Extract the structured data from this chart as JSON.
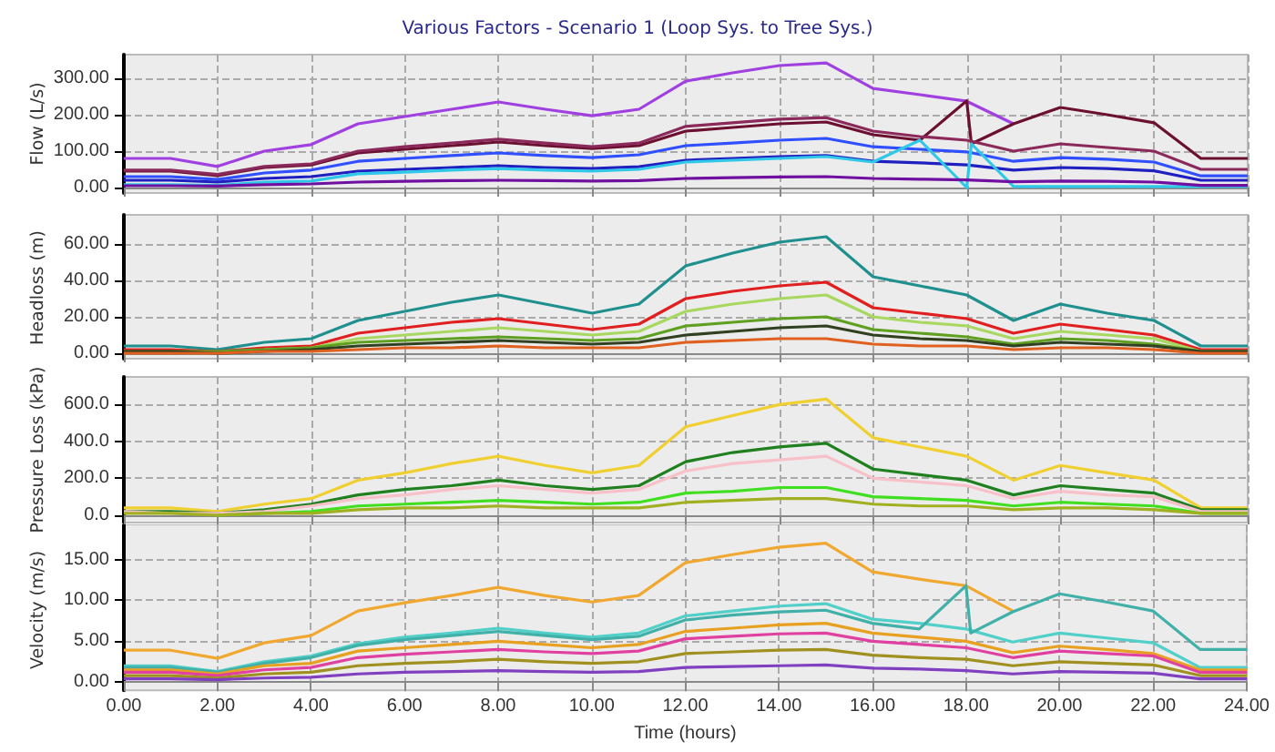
{
  "chart_data": [
    {
      "type": "line",
      "title": "Various Factors - Scenario 1 (Loop Sys. to Tree Sys.)",
      "ylabel": "Flow (L/s)",
      "x": [
        0,
        1,
        2,
        3,
        4,
        5,
        6,
        7,
        8,
        9,
        10,
        11,
        12,
        13,
        14,
        15,
        16,
        17,
        18,
        19,
        20,
        21,
        22,
        23,
        24
      ],
      "xlim": [
        0,
        24
      ],
      "xticks": [
        0,
        2,
        4,
        6,
        8,
        10,
        12,
        14,
        16,
        18,
        20,
        22,
        24
      ],
      "tick_labels": "y",
      "ylim": [
        -15,
        365
      ],
      "yticks": [
        {
          "value": 0,
          "label": "0.00"
        },
        {
          "value": 100,
          "label": "100.00"
        },
        {
          "value": 200,
          "label": "200.00"
        },
        {
          "value": 300,
          "label": "300.00"
        }
      ],
      "grid": true,
      "series": [
        {
          "color": "#a040e0",
          "values": [
            80,
            80,
            58,
            100,
            118,
            175,
            195,
            215,
            235,
            215,
            197,
            215,
            292,
            315,
            335,
            342,
            272,
            255,
            237,
            175,
            null,
            null,
            null,
            null,
            null
          ]
        },
        {
          "color": "#6b1030",
          "x": [
            0,
            1,
            2,
            3,
            4,
            5,
            6,
            7,
            8,
            9,
            10,
            11,
            12,
            13,
            14,
            15,
            16,
            17,
            18,
            18.1,
            19,
            20,
            21,
            22,
            23,
            24
          ],
          "values": [
            45,
            45,
            33,
            55,
            62,
            95,
            105,
            115,
            125,
            115,
            107,
            115,
            155,
            165,
            175,
            180,
            145,
            130,
            238,
            120,
            175,
            220,
            200,
            178,
            80,
            80
          ]
        },
        {
          "color": "#8b2a5a",
          "values": [
            48,
            48,
            36,
            58,
            65,
            100,
            112,
            122,
            133,
            122,
            112,
            122,
            168,
            178,
            188,
            192,
            155,
            140,
            130,
            100,
            120,
            110,
            100,
            50,
            50
          ]
        },
        {
          "color": "#3050ff",
          "values": [
            30,
            30,
            22,
            40,
            48,
            72,
            80,
            88,
            95,
            88,
            82,
            90,
            115,
            122,
            130,
            135,
            112,
            105,
            98,
            72,
            82,
            78,
            70,
            32,
            32
          ]
        },
        {
          "color": "#2020c0",
          "values": [
            20,
            20,
            15,
            25,
            30,
            45,
            50,
            55,
            60,
            55,
            52,
            57,
            75,
            80,
            85,
            88,
            72,
            68,
            62,
            48,
            55,
            52,
            46,
            20,
            20
          ]
        },
        {
          "color": "#30c8e8",
          "x": [
            0,
            1,
            2,
            3,
            4,
            5,
            6,
            7,
            8,
            9,
            10,
            11,
            12,
            13,
            14,
            15,
            16,
            17,
            18,
            18.1,
            19,
            20,
            21,
            22,
            23,
            24
          ],
          "values": [
            8,
            8,
            6,
            15,
            18,
            38,
            42,
            48,
            52,
            48,
            45,
            50,
            70,
            75,
            80,
            85,
            70,
            130,
            0,
            120,
            3,
            3,
            3,
            3,
            3,
            3
          ]
        },
        {
          "color": "#7010a0",
          "values": [
            5,
            5,
            4,
            8,
            10,
            15,
            17,
            19,
            20,
            19,
            18,
            19,
            25,
            27,
            29,
            30,
            25,
            23,
            21,
            16,
            18,
            17,
            15,
            6,
            6
          ]
        }
      ]
    },
    {
      "type": "line",
      "ylabel": "Headloss (m)",
      "x": [
        0,
        1,
        2,
        3,
        4,
        5,
        6,
        7,
        8,
        9,
        10,
        11,
        12,
        13,
        14,
        15,
        16,
        17,
        18,
        19,
        20,
        21,
        22,
        23,
        24
      ],
      "xlim": [
        0,
        24
      ],
      "xticks": [
        0,
        2,
        4,
        6,
        8,
        10,
        12,
        14,
        16,
        18,
        20,
        22,
        24
      ],
      "tick_labels": "y",
      "ylim": [
        -3,
        76
      ],
      "yticks": [
        {
          "value": 0,
          "label": "0.00"
        },
        {
          "value": 20,
          "label": "20.00"
        },
        {
          "value": 40,
          "label": "40.00"
        },
        {
          "value": 60,
          "label": "60.00"
        }
      ],
      "grid": true,
      "series": [
        {
          "color": "#20908f",
          "values": [
            4,
            4,
            2,
            6,
            8,
            18,
            23,
            28,
            32,
            27,
            22,
            27,
            48,
            55,
            61,
            64,
            42,
            37,
            32,
            18,
            27,
            22,
            18,
            4,
            4
          ]
        },
        {
          "color": "#e02020",
          "values": [
            2,
            2,
            1,
            3,
            4,
            11,
            14,
            17,
            19,
            16,
            13,
            16,
            30,
            34,
            37,
            39,
            25,
            22,
            19,
            11,
            16,
            13,
            10,
            2,
            2
          ]
        },
        {
          "color": "#a8d860",
          "values": [
            null,
            null,
            null,
            2,
            3,
            8,
            10,
            12,
            14,
            12,
            10,
            12,
            23,
            27,
            30,
            32,
            20,
            17,
            15,
            8,
            12,
            10,
            8,
            1,
            1
          ]
        },
        {
          "color": "#60a020",
          "values": [
            1,
            1,
            1,
            2,
            3,
            6,
            7,
            8,
            9,
            8,
            7,
            8,
            15,
            17,
            19,
            20,
            13,
            11,
            9,
            5,
            8,
            7,
            5,
            1,
            1
          ]
        },
        {
          "color": "#304020",
          "values": [
            1,
            1,
            0,
            1,
            2,
            4,
            5,
            6,
            7,
            6,
            5,
            6,
            10,
            12,
            14,
            15,
            10,
            8,
            7,
            4,
            6,
            5,
            4,
            1,
            1
          ]
        },
        {
          "color": "#e06020",
          "values": [
            0,
            0,
            0,
            1,
            1,
            2,
            3,
            3,
            4,
            3,
            3,
            3,
            6,
            7,
            8,
            8,
            5,
            4,
            4,
            2,
            3,
            3,
            2,
            0,
            0
          ]
        }
      ]
    },
    {
      "type": "line",
      "ylabel": "Pressure Loss (kPa)",
      "x": [
        0,
        1,
        2,
        3,
        4,
        5,
        6,
        7,
        8,
        9,
        10,
        11,
        12,
        13,
        14,
        15,
        16,
        17,
        18,
        19,
        20,
        21,
        22,
        23,
        24
      ],
      "xlim": [
        0,
        24
      ],
      "xticks": [
        0,
        2,
        4,
        6,
        8,
        10,
        12,
        14,
        16,
        18,
        20,
        22,
        24
      ],
      "tick_labels": "y",
      "ylim": [
        -40,
        750
      ],
      "yticks": [
        {
          "value": 0,
          "label": "0.0"
        },
        {
          "value": 200,
          "label": "200.0"
        },
        {
          "value": 400,
          "label": "400.0"
        },
        {
          "value": 600,
          "label": "600.0"
        }
      ],
      "grid": true,
      "series": [
        {
          "color": "#f0d030",
          "values": [
            40,
            40,
            20,
            60,
            90,
            190,
            230,
            280,
            320,
            270,
            230,
            270,
            480,
            540,
            600,
            630,
            420,
            370,
            320,
            190,
            270,
            230,
            190,
            40,
            40
          ]
        },
        {
          "color": "#208020",
          "values": [
            20,
            20,
            10,
            30,
            60,
            110,
            140,
            160,
            190,
            160,
            140,
            160,
            290,
            340,
            370,
            390,
            250,
            220,
            190,
            110,
            160,
            140,
            120,
            30,
            30
          ]
        },
        {
          "color": "#f8c0c8",
          "values": [
            20,
            10,
            10,
            20,
            50,
            90,
            110,
            140,
            160,
            140,
            120,
            140,
            240,
            280,
            300,
            320,
            200,
            180,
            160,
            90,
            130,
            110,
            100,
            20,
            20
          ]
        },
        {
          "color": "#40e020",
          "values": [
            null,
            null,
            0,
            10,
            20,
            50,
            60,
            70,
            80,
            70,
            60,
            70,
            120,
            130,
            150,
            150,
            100,
            90,
            80,
            50,
            70,
            60,
            50,
            10,
            10
          ]
        },
        {
          "color": "#a0b020",
          "values": [
            10,
            10,
            0,
            10,
            10,
            30,
            40,
            40,
            50,
            40,
            40,
            40,
            70,
            80,
            90,
            90,
            60,
            50,
            50,
            30,
            40,
            40,
            30,
            10,
            10
          ]
        }
      ]
    },
    {
      "type": "line",
      "ylabel": "Velocity (m/s)",
      "xlabel": "Time (hours)",
      "x": [
        0,
        1,
        2,
        3,
        4,
        5,
        6,
        7,
        8,
        9,
        10,
        11,
        12,
        13,
        14,
        15,
        16,
        17,
        18,
        19,
        20,
        21,
        22,
        23,
        24
      ],
      "xlim": [
        0,
        24
      ],
      "xticks": [
        {
          "value": 0,
          "label": "0.00"
        },
        {
          "value": 2,
          "label": "2.00"
        },
        {
          "value": 4,
          "label": "4.00"
        },
        {
          "value": 6,
          "label": "6.00"
        },
        {
          "value": 8,
          "label": "8.00"
        },
        {
          "value": 10,
          "label": "10.00"
        },
        {
          "value": 12,
          "label": "12.00"
        },
        {
          "value": 14,
          "label": "14.00"
        },
        {
          "value": 16,
          "label": "16.00"
        },
        {
          "value": 18,
          "label": "18.00"
        },
        {
          "value": 20,
          "label": "20.00"
        },
        {
          "value": 22,
          "label": "22.00"
        },
        {
          "value": 24,
          "label": "24.00"
        }
      ],
      "ylim": [
        -1,
        19.3
      ],
      "yticks": [
        {
          "value": 0,
          "label": "0.00"
        },
        {
          "value": 5,
          "label": "5.00"
        },
        {
          "value": 10,
          "label": "10.00"
        },
        {
          "value": 15,
          "label": "15.00"
        }
      ],
      "grid": true,
      "series": [
        {
          "color": "#f0a830",
          "values": [
            3.9,
            3.9,
            2.9,
            4.8,
            5.7,
            8.7,
            9.7,
            10.6,
            11.6,
            10.6,
            9.8,
            10.6,
            14.6,
            15.6,
            16.5,
            17,
            13.5,
            12.6,
            11.8,
            8.7,
            null,
            null,
            null,
            null,
            null
          ]
        },
        {
          "color": "#50d0c8",
          "values": [
            2,
            2,
            1.3,
            2.5,
            3.2,
            4.7,
            5.5,
            6,
            6.6,
            6,
            5.5,
            6,
            8.1,
            8.7,
            9.3,
            9.6,
            7.7,
            7.2,
            6.5,
            4.9,
            6,
            5.4,
            4.8,
            1.8,
            1.8
          ]
        },
        {
          "color": "#40b0a8",
          "x": [
            0,
            1,
            2,
            3,
            4,
            5,
            6,
            7,
            8,
            9,
            10,
            11,
            12,
            13,
            14,
            15,
            16,
            17,
            18,
            18.1,
            19,
            20,
            21,
            22,
            23,
            24
          ],
          "values": [
            1.8,
            1.8,
            1.2,
            2.3,
            3,
            4.5,
            5.2,
            5.7,
            6.2,
            5.7,
            5.2,
            5.6,
            7.6,
            8.2,
            8.6,
            8.8,
            7.2,
            6.5,
            11.8,
            6,
            8.6,
            10.8,
            9.8,
            8.7,
            4,
            4
          ]
        },
        {
          "color": "#e8a020",
          "values": [
            1.5,
            1.5,
            1,
            2,
            2.3,
            3.8,
            4.2,
            4.6,
            5,
            4.6,
            4.2,
            4.6,
            6.2,
            6.6,
            7,
            7.2,
            6,
            5.5,
            5,
            3.6,
            4.4,
            4,
            3.5,
            1.5,
            1.5
          ]
        },
        {
          "color": "#e040a0",
          "values": [
            1.2,
            1.2,
            0.8,
            1.5,
            1.8,
            3,
            3.4,
            3.7,
            4,
            3.7,
            3.5,
            3.8,
            5.3,
            5.6,
            5.9,
            6,
            5,
            4.6,
            4.2,
            3,
            3.8,
            3.5,
            3.2,
            1.2,
            1.2
          ]
        },
        {
          "color": "#a09020",
          "values": [
            0.8,
            0.8,
            0.5,
            1,
            1.2,
            2,
            2.3,
            2.5,
            2.8,
            2.5,
            2.3,
            2.5,
            3.5,
            3.7,
            3.9,
            4,
            3.3,
            3,
            2.8,
            2,
            2.5,
            2.3,
            2.1,
            0.8,
            0.8
          ]
        },
        {
          "color": "#8040c0",
          "values": [
            0.4,
            0.4,
            0.3,
            0.5,
            0.6,
            1,
            1.2,
            1.3,
            1.4,
            1.3,
            1.2,
            1.3,
            1.8,
            1.9,
            2,
            2.1,
            1.7,
            1.6,
            1.4,
            1,
            1.3,
            1.2,
            1.1,
            0.4,
            0.4
          ]
        }
      ]
    }
  ]
}
